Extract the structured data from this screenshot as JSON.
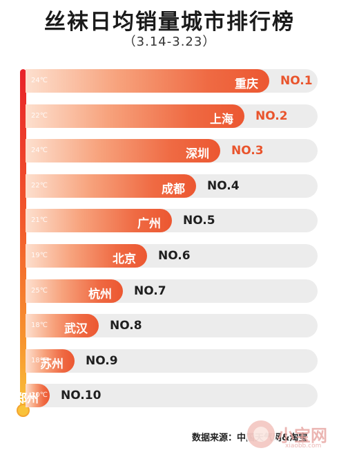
{
  "chart_data": {
    "type": "bar",
    "title": "丝袜日均销量城市排行榜",
    "subtitle": "（3.14-3.23）",
    "categories": [
      "重庆",
      "上海",
      "深圳",
      "成都",
      "广州",
      "北京",
      "杭州",
      "武汉",
      "苏州",
      "郑州"
    ],
    "ranks": [
      "NO.1",
      "NO.2",
      "NO.3",
      "NO.4",
      "NO.5",
      "NO.6",
      "NO.7",
      "NO.8",
      "NO.9",
      "NO.10"
    ],
    "temperatures": [
      "24℃",
      "22℃",
      "24℃",
      "22℃",
      "21℃",
      "19℃",
      "25℃",
      "18℃",
      "18℃",
      "20℃"
    ],
    "values": [
      10,
      9,
      8,
      7,
      6,
      5,
      4,
      3,
      2,
      1
    ],
    "xlim": [
      0,
      12
    ]
  },
  "colors": {
    "rank_highlight": "#e9542c",
    "rank_normal": "#1f1f1f",
    "bar_end": "#ec5731",
    "track": "#ececec"
  },
  "footer": {
    "source": "数据来源：中国天气网&淘宝",
    "watermark": "小宝网",
    "watermark_url": "xiaobb.com"
  }
}
